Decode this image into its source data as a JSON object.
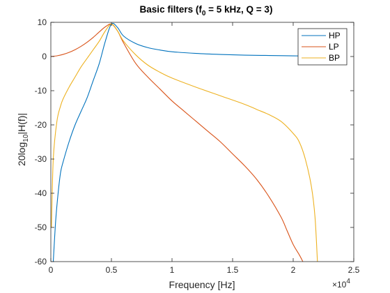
{
  "chart_data": {
    "type": "line",
    "title_main": "Basic filters (f",
    "title_sub": "0",
    "title_rest": " = 5 kHz, Q = 3)",
    "xlabel": "Frequency [Hz]",
    "ylabel_main": "20log",
    "ylabel_sub": "10",
    "ylabel_rest": "|H(f)|",
    "x_multiplier_base": "×10",
    "x_multiplier_exp": "4",
    "xlim": [
      0,
      25000
    ],
    "ylim": [
      -60,
      10
    ],
    "xticks": [
      0,
      5000,
      10000,
      15000,
      20000,
      25000
    ],
    "xtick_labels": [
      "0",
      "0.5",
      "1",
      "1.5",
      "2",
      "2.5"
    ],
    "yticks": [
      10,
      0,
      -10,
      -20,
      -30,
      -40,
      -50,
      -60
    ],
    "ytick_labels": [
      "10",
      "0",
      "-10",
      "-20",
      "-30",
      "-40",
      "-50",
      "-60"
    ],
    "legend_position": "top-right",
    "series": [
      {
        "name": "HP",
        "color": "#0072BD",
        "x": [
          200,
          400,
          600,
          800,
          1000,
          1500,
          2000,
          2500,
          3000,
          3500,
          4000,
          4500,
          5000,
          5500,
          6000,
          7000,
          8000,
          9000,
          10000,
          12000,
          14000,
          16000,
          18000,
          20000,
          22000,
          24000
        ],
        "y": [
          -60,
          -48,
          -40,
          -34,
          -31,
          -25,
          -20,
          -16,
          -12,
          -7,
          -2,
          4.5,
          9.5,
          8.5,
          6,
          3.8,
          2.6,
          1.9,
          1.4,
          0.9,
          0.6,
          0.4,
          0.3,
          0.2,
          0.1,
          0
        ]
      },
      {
        "name": "LP",
        "color": "#D95319",
        "x": [
          0,
          500,
          1000,
          1500,
          2000,
          2500,
          3000,
          3500,
          4000,
          4500,
          5000,
          5500,
          6000,
          7000,
          8000,
          9000,
          10000,
          11000,
          12000,
          13000,
          14000,
          15000,
          16000,
          17000,
          18000,
          19000,
          19500,
          20000,
          20500,
          20800
        ],
        "y": [
          0,
          0.2,
          0.6,
          1.2,
          2,
          3,
          4.2,
          5.6,
          7.2,
          8.7,
          9.5,
          7.5,
          4,
          -2,
          -6,
          -9.5,
          -13,
          -16,
          -19,
          -22,
          -25,
          -28.5,
          -32,
          -36,
          -41,
          -47,
          -51,
          -55,
          -58,
          -60
        ]
      },
      {
        "name": "BP",
        "color": "#EDB120",
        "x": [
          50,
          200,
          500,
          800,
          1000,
          1500,
          2000,
          2500,
          3000,
          3500,
          4000,
          4500,
          5000,
          5500,
          6000,
          7000,
          8000,
          9000,
          10000,
          12000,
          14000,
          16000,
          17000,
          18000,
          19000,
          20000,
          20500,
          21000,
          21500,
          21800,
          22000
        ],
        "y": [
          -50,
          -30,
          -19,
          -14.5,
          -12.5,
          -9,
          -6,
          -3,
          -0.5,
          2,
          4.5,
          7.5,
          9.5,
          7.5,
          4.5,
          0.5,
          -2.5,
          -4.6,
          -6.3,
          -9,
          -11.5,
          -14,
          -15.5,
          -17,
          -19,
          -22.5,
          -25,
          -30,
          -38,
          -47,
          -60
        ]
      }
    ]
  }
}
